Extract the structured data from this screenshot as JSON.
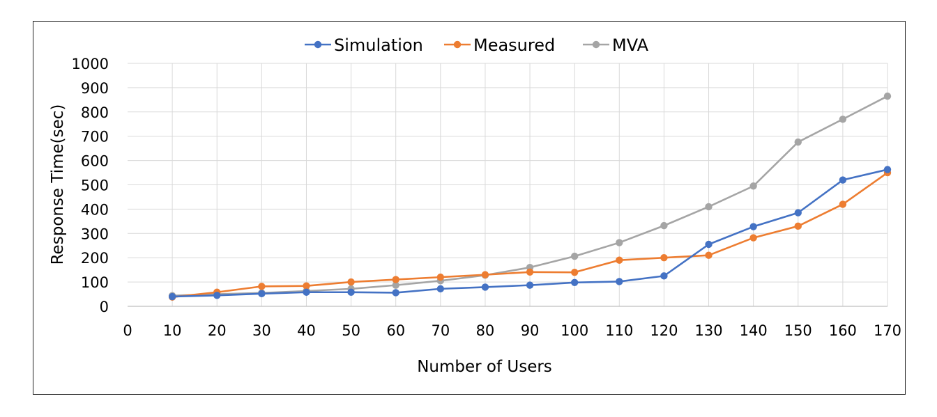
{
  "chart_data": {
    "type": "line",
    "title": "",
    "xlabel": "Number of Users",
    "ylabel": "Response Time(sec)",
    "xlim": [
      0,
      170
    ],
    "ylim": [
      0,
      1000
    ],
    "x_ticks": [
      "0",
      "10",
      "20",
      "30",
      "40",
      "50",
      "60",
      "70",
      "80",
      "90",
      "100",
      "110",
      "120",
      "130",
      "140",
      "150",
      "160",
      "170"
    ],
    "y_ticks": [
      "0",
      "100",
      "200",
      "300",
      "400",
      "500",
      "600",
      "700",
      "800",
      "900",
      "1000"
    ],
    "grid": true,
    "legend_position": "top",
    "x": [
      10,
      20,
      30,
      40,
      50,
      60,
      70,
      80,
      90,
      100,
      110,
      120,
      130,
      140,
      150,
      160,
      170
    ],
    "series": [
      {
        "name": "Simulation",
        "color": "#4472C4",
        "values": [
          40,
          45,
          52,
          58,
          58,
          56,
          72,
          79,
          87,
          98,
          102,
          125,
          255,
          328,
          385,
          520,
          563
        ]
      },
      {
        "name": "Measured",
        "color": "#ED7D31",
        "values": [
          38,
          58,
          82,
          84,
          100,
          110,
          120,
          130,
          141,
          140,
          190,
          200,
          210,
          282,
          330,
          420,
          550
        ]
      },
      {
        "name": "MVA",
        "color": "#A5A5A5",
        "values": [
          44,
          50,
          55,
          63,
          72,
          87,
          105,
          128,
          160,
          206,
          262,
          332,
          410,
          495,
          676,
          770,
          865
        ]
      }
    ]
  }
}
